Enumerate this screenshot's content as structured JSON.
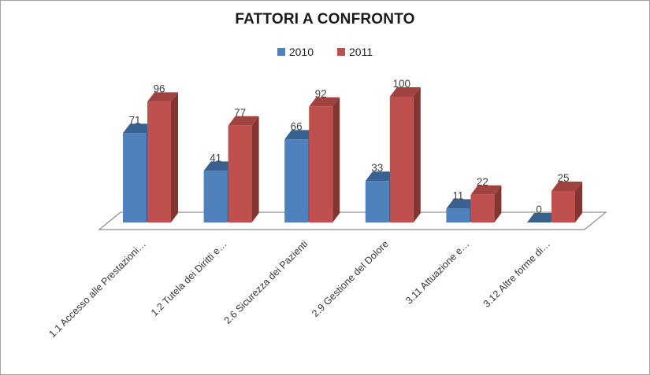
{
  "chart_data": {
    "type": "bar",
    "style": "3d-clustered-column",
    "title": "FATTORI A CONFRONTO",
    "xlabel": "",
    "ylabel": "",
    "ylim": [
      0,
      100
    ],
    "grid": false,
    "legend_position": "top",
    "data_labels": true,
    "categories": [
      "1.1 Accesso alle Prestazioni…",
      "1.2 Tutela dei Diritti e…",
      "2.6 Sicurezza dei Pazienti",
      "2.9 Gestione del Dolore",
      "3.11 Attuazione e…",
      "3.12 Altre forme di…"
    ],
    "series": [
      {
        "name": "2010",
        "values": [
          71,
          41,
          66,
          33,
          11,
          0
        ],
        "color": "#4F81BD",
        "color_top": "#37628F",
        "color_side": "#2A4E78"
      },
      {
        "name": "2011",
        "values": [
          96,
          77,
          92,
          100,
          22,
          25
        ],
        "color": "#C0504D",
        "color_top": "#A04240",
        "color_side": "#833532"
      }
    ],
    "text_color": "#404040",
    "floor_line_color": "#8f8f8f"
  }
}
